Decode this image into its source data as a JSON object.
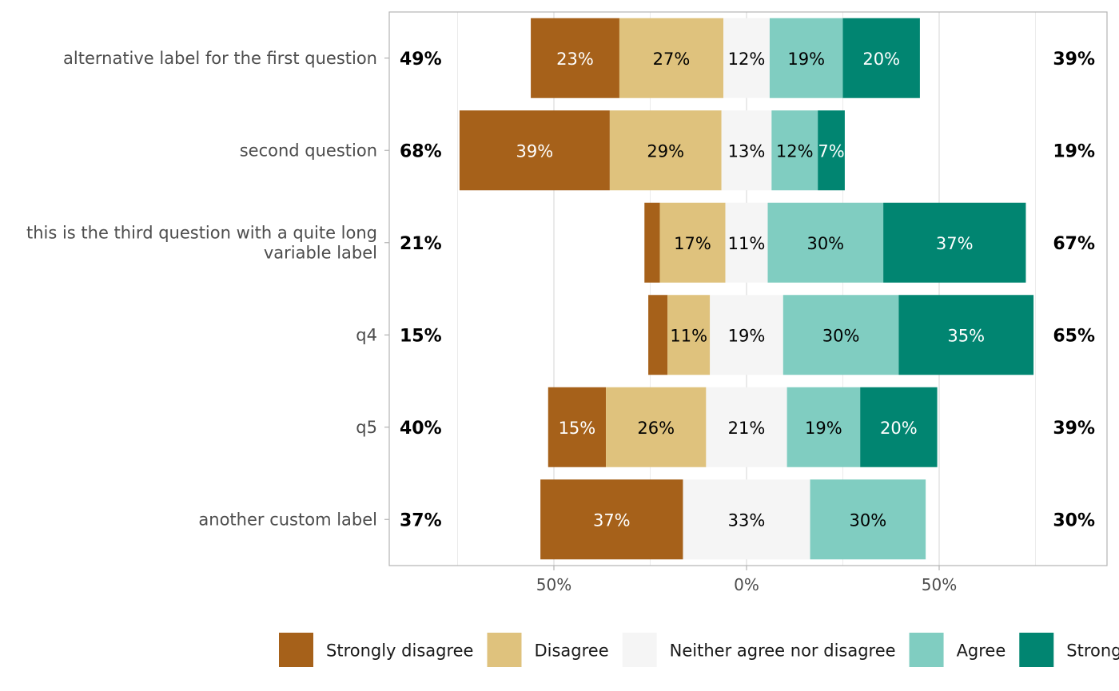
{
  "chart_data": {
    "type": "bar",
    "subtype": "diverging stacked likert",
    "title": "",
    "xlabel": "",
    "ylabel": "",
    "xlim": [
      -0.93,
      0.93
    ],
    "x_ticks": [
      {
        "value": -0.5,
        "label": "50%"
      },
      {
        "value": 0,
        "label": "0%"
      },
      {
        "value": 0.5,
        "label": "50%"
      }
    ],
    "grid": true,
    "legend_position": "bottom",
    "levels": [
      {
        "name": "Strongly disagree",
        "color": "#a6611a",
        "text_color": "#ffffff"
      },
      {
        "name": "Disagree",
        "color": "#dfc27d",
        "text_color": "#000000"
      },
      {
        "name": "Neither agree nor disagree",
        "color": "#f5f5f5",
        "text_color": "#000000"
      },
      {
        "name": "Agree",
        "color": "#80cdc1",
        "text_color": "#000000"
      },
      {
        "name": "Strongly agree",
        "color": "#018571",
        "text_color": "#ffffff"
      }
    ],
    "questions": [
      {
        "label_lines": [
          "alternative label for the first question"
        ],
        "values": [
          0.23,
          0.27,
          0.12,
          0.19,
          0.2
        ],
        "labels": [
          "23%",
          "27%",
          "12%",
          "19%",
          "20%"
        ],
        "left_total": "49%",
        "right_total": "39%"
      },
      {
        "label_lines": [
          "second question"
        ],
        "values": [
          0.39,
          0.29,
          0.13,
          0.12,
          0.07
        ],
        "labels": [
          "39%",
          "29%",
          "13%",
          "12%",
          "7%"
        ],
        "left_total": "68%",
        "right_total": "19%"
      },
      {
        "label_lines": [
          "this is the third question with a quite long",
          "variable label"
        ],
        "values": [
          0.04,
          0.17,
          0.11,
          0.3,
          0.37
        ],
        "labels": [
          "",
          "17%",
          "11%",
          "30%",
          "37%"
        ],
        "left_total": "21%",
        "right_total": "67%"
      },
      {
        "label_lines": [
          "q4"
        ],
        "values": [
          0.05,
          0.11,
          0.19,
          0.3,
          0.35
        ],
        "labels": [
          "",
          "11%",
          "19%",
          "30%",
          "35%"
        ],
        "left_total": "15%",
        "right_total": "65%"
      },
      {
        "label_lines": [
          "q5"
        ],
        "values": [
          0.15,
          0.26,
          0.21,
          0.19,
          0.2
        ],
        "labels": [
          "15%",
          "26%",
          "21%",
          "19%",
          "20%"
        ],
        "left_total": "40%",
        "right_total": "39%"
      },
      {
        "label_lines": [
          "another custom label"
        ],
        "values": [
          0.37,
          0,
          0.33,
          0.3,
          0
        ],
        "labels": [
          "37%",
          "",
          "33%",
          "30%",
          ""
        ],
        "left_total": "37%",
        "right_total": "30%"
      }
    ]
  }
}
